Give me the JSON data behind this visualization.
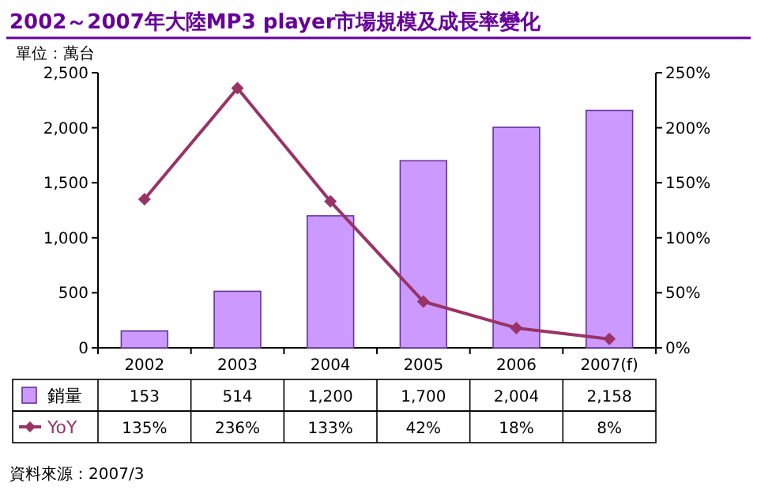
{
  "chart_data": {
    "type": "bar",
    "title": "2002～2007年大陸MP3 player市場規模及成長率變化",
    "ylabel": "單位：萬台",
    "categories": [
      "2002",
      "2003",
      "2004",
      "2005",
      "2006",
      "2007(f)"
    ],
    "series": [
      {
        "name": "銷量",
        "color": "#cc99ff",
        "values": [
          153,
          514,
          1200,
          1700,
          2004,
          2158
        ],
        "value_labels": [
          "153",
          "514",
          "1,200",
          "1,700",
          "2,004",
          "2,158"
        ]
      },
      {
        "name": "YoY",
        "type": "line",
        "axis": "y2",
        "color": "#993366",
        "marker": "diamond",
        "values": [
          135,
          236,
          133,
          42,
          18,
          8
        ],
        "value_labels": [
          "135%",
          "236%",
          "133%",
          "42%",
          "18%",
          "8%"
        ]
      }
    ],
    "ylim": [
      0,
      2500
    ],
    "yticks": [
      0,
      {
        "value": 500,
        "label": "500"
      },
      {
        "value": 1000,
        "label": "1,000"
      },
      {
        "value": 1500,
        "label": "1,500"
      },
      {
        "value": 2000,
        "label": "2,000"
      },
      {
        "value": 2500,
        "label": "2,500"
      }
    ],
    "y2lim": [
      0,
      250
    ],
    "y2ticks": [
      {
        "value": 0,
        "label": "0%"
      },
      {
        "value": 50,
        "label": "50%"
      },
      {
        "value": 100,
        "label": "100%"
      },
      {
        "value": 150,
        "label": "150%"
      },
      {
        "value": 200,
        "label": "200%"
      },
      {
        "value": 250,
        "label": "250%"
      }
    ],
    "legend": "bottom",
    "annotations": [
      "資料來源：2007/3"
    ]
  }
}
